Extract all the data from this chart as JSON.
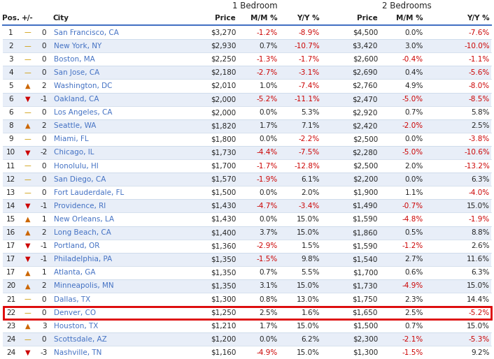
{
  "rows": [
    [
      1,
      "=",
      0,
      "San Francisco, CA",
      "$3,270",
      "-1.2%",
      "-8.9%",
      "$4,500",
      "0.0%",
      "-7.6%"
    ],
    [
      2,
      "=",
      0,
      "New York, NY",
      "$2,930",
      "0.7%",
      "-10.7%",
      "$3,420",
      "3.0%",
      "-10.0%"
    ],
    [
      3,
      "=",
      0,
      "Boston, MA",
      "$2,250",
      "-1.3%",
      "-1.7%",
      "$2,600",
      "-0.4%",
      "-1.1%"
    ],
    [
      4,
      "=",
      0,
      "San Jose, CA",
      "$2,180",
      "-2.7%",
      "-3.1%",
      "$2,690",
      "0.4%",
      "-5.6%"
    ],
    [
      5,
      "^",
      2,
      "Washington, DC",
      "$2,010",
      "1.0%",
      "-7.4%",
      "$2,760",
      "4.9%",
      "-8.0%"
    ],
    [
      6,
      "v",
      -1,
      "Oakland, CA",
      "$2,000",
      "-5.2%",
      "-11.1%",
      "$2,470",
      "-5.0%",
      "-8.5%"
    ],
    [
      6,
      "=",
      0,
      "Los Angeles, CA",
      "$2,000",
      "0.0%",
      "5.3%",
      "$2,920",
      "0.7%",
      "5.8%"
    ],
    [
      8,
      "^",
      2,
      "Seattle, WA",
      "$1,820",
      "1.7%",
      "7.1%",
      "$2,420",
      "-2.0%",
      "2.5%"
    ],
    [
      9,
      "=",
      0,
      "Miami, FL",
      "$1,800",
      "0.0%",
      "-2.2%",
      "$2,500",
      "0.0%",
      "-3.8%"
    ],
    [
      10,
      "v",
      -2,
      "Chicago, IL",
      "$1,730",
      "-4.4%",
      "-7.5%",
      "$2,280",
      "-5.0%",
      "-10.6%"
    ],
    [
      11,
      "=",
      0,
      "Honolulu, HI",
      "$1,700",
      "-1.7%",
      "-12.8%",
      "$2,500",
      "2.0%",
      "-13.2%"
    ],
    [
      12,
      "=",
      0,
      "San Diego, CA",
      "$1,570",
      "-1.9%",
      "6.1%",
      "$2,200",
      "0.0%",
      "6.3%"
    ],
    [
      13,
      "=",
      0,
      "Fort Lauderdale, FL",
      "$1,500",
      "0.0%",
      "2.0%",
      "$1,900",
      "1.1%",
      "-4.0%"
    ],
    [
      14,
      "v",
      -1,
      "Providence, RI",
      "$1,430",
      "-4.7%",
      "-3.4%",
      "$1,490",
      "-0.7%",
      "15.0%"
    ],
    [
      15,
      "^",
      1,
      "New Orleans, LA",
      "$1,430",
      "0.0%",
      "15.0%",
      "$1,590",
      "-4.8%",
      "-1.9%"
    ],
    [
      16,
      "^",
      2,
      "Long Beach, CA",
      "$1,400",
      "3.7%",
      "15.0%",
      "$1,860",
      "0.5%",
      "8.8%"
    ],
    [
      17,
      "v",
      -1,
      "Portland, OR",
      "$1,360",
      "-2.9%",
      "1.5%",
      "$1,590",
      "-1.2%",
      "2.6%"
    ],
    [
      17,
      "v",
      -1,
      "Philadelphia, PA",
      "$1,350",
      "-1.5%",
      "9.8%",
      "$1,540",
      "2.7%",
      "11.6%"
    ],
    [
      17,
      "^",
      1,
      "Atlanta, GA",
      "$1,350",
      "0.7%",
      "5.5%",
      "$1,700",
      "0.6%",
      "6.3%"
    ],
    [
      20,
      "^",
      2,
      "Minneapolis, MN",
      "$1,350",
      "3.1%",
      "15.0%",
      "$1,730",
      "-4.9%",
      "15.0%"
    ],
    [
      21,
      "=",
      0,
      "Dallas, TX",
      "$1,300",
      "0.8%",
      "13.0%",
      "$1,750",
      "2.3%",
      "14.4%"
    ],
    [
      22,
      "=",
      0,
      "Denver, CO",
      "$1,250",
      "2.5%",
      "1.6%",
      "$1,650",
      "2.5%",
      "-5.2%"
    ],
    [
      23,
      "^",
      3,
      "Houston, TX",
      "$1,210",
      "1.7%",
      "15.0%",
      "$1,500",
      "0.7%",
      "15.0%"
    ],
    [
      24,
      "=",
      0,
      "Scottsdale, AZ",
      "$1,200",
      "0.0%",
      "6.2%",
      "$2,300",
      "-2.1%",
      "-5.3%"
    ],
    [
      24,
      "v",
      -3,
      "Nashville, TN",
      "$1,160",
      "-4.9%",
      "15.0%",
      "$1,300",
      "-1.5%",
      "9.2%"
    ]
  ],
  "highlighted_row": 21,
  "bg_odd": "#e8eef8",
  "bg_even": "#ffffff",
  "city_color_blue": "#4472c4",
  "city_color_black": "#000000",
  "text_color": "#222222",
  "neg_color": "#cc0000",
  "up_color": "#cc6600",
  "down_color": "#cc0000",
  "eq_color": "#cc9900",
  "sep_color": "#c5d5e8",
  "hdr_line_color": "#4472c4",
  "red_border": "#dd0000",
  "fontsize": 7.5,
  "header_fontsize": 7.5,
  "group_fontsize": 8.5
}
